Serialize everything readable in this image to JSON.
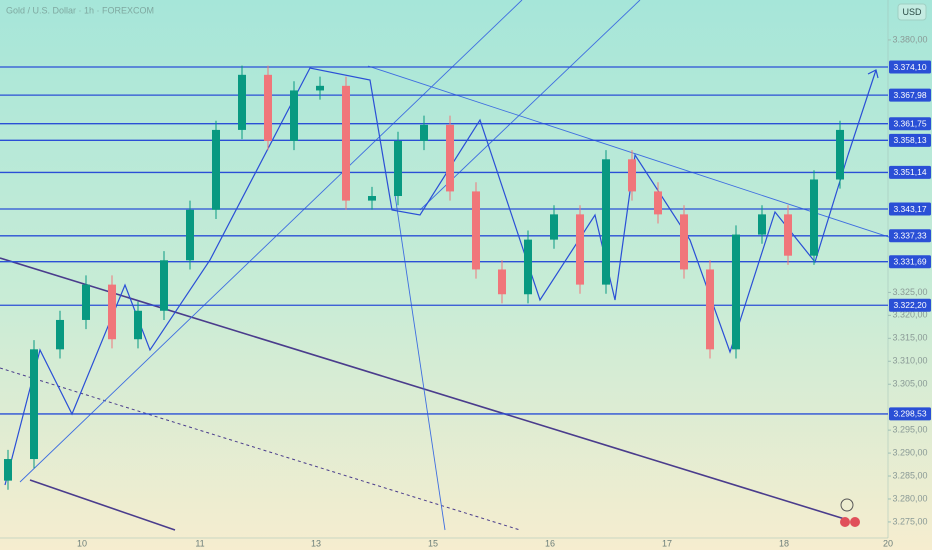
{
  "chart_data": {
    "type": "candlestick",
    "title": "Gold / U.S. Dollar · 1h · FOREXCOM",
    "currency": "USD",
    "up_color": "#089981",
    "down_color": "#f0767a",
    "level_color": "#2a4fd6",
    "ylim": [
      3271.5,
      3388.7
    ],
    "yticks": [
      {
        "value": 3380,
        "label": "3.380,00"
      },
      {
        "value": 3325,
        "label": "3.325,00"
      },
      {
        "value": 3320,
        "label": "3.320,00"
      },
      {
        "value": 3315,
        "label": "3.315,00"
      },
      {
        "value": 3310,
        "label": "3.310,00"
      },
      {
        "value": 3305,
        "label": "3.305,00"
      },
      {
        "value": 3295,
        "label": "3.295,00"
      },
      {
        "value": 3290,
        "label": "3.290,00"
      },
      {
        "value": 3285,
        "label": "3.285,00"
      },
      {
        "value": 3280,
        "label": "3.280,00"
      },
      {
        "value": 3275,
        "label": "3.275,00"
      }
    ],
    "x_labels": [
      "10",
      "11",
      "13",
      "15",
      "16",
      "17",
      "18",
      "20"
    ],
    "levels": [
      {
        "value": 3374.1,
        "label": "3.374,10"
      },
      {
        "value": 3367.98,
        "label": "3.367,98"
      },
      {
        "value": 3361.75,
        "label": "3.361,75"
      },
      {
        "value": 3358.13,
        "label": "3.358,13"
      },
      {
        "value": 3351.14,
        "label": "3.351,14"
      },
      {
        "value": 3343.17,
        "label": "3.343,17"
      },
      {
        "value": 3337.33,
        "label": "3.337,33"
      },
      {
        "value": 3331.69,
        "label": "3.331,69"
      },
      {
        "value": 3322.2,
        "label": "3.322,20"
      },
      {
        "value": 3298.53,
        "label": "3.298,53"
      }
    ],
    "open": [
      3284,
      3288.7,
      3312.6,
      3319,
      3326.7,
      3314.8,
      3321,
      3332,
      3343,
      3360.4,
      3372.4,
      3358,
      3369,
      3370,
      3345,
      3346,
      3358,
      3361.5,
      3347,
      3330,
      3324.6,
      3336.5,
      3342,
      3326.7,
      3354,
      3347,
      3342,
      3330,
      3312.6,
      3337.6,
      3342,
      3333,
      3349.6
    ],
    "high": [
      3290.7,
      3314.6,
      3321,
      3328.7,
      3328.7,
      3323,
      3334,
      3345,
      3362.4,
      3374.4,
      3374.4,
      3371,
      3372,
      3372,
      3348,
      3360,
      3363.5,
      3363.5,
      3349,
      3332,
      3338.5,
      3344,
      3344,
      3356,
      3356,
      3349,
      3344,
      3332,
      3339.6,
      3344,
      3344,
      3351.6,
      3362.4
    ],
    "low": [
      3282,
      3286.7,
      3310.6,
      3317,
      3312.8,
      3312.8,
      3319,
      3330,
      3341,
      3358.4,
      3356,
      3356,
      3367,
      3343,
      3343,
      3344,
      3356,
      3345,
      3328,
      3322.6,
      3322.6,
      3334.5,
      3324.7,
      3324.7,
      3345,
      3340,
      3328,
      3310.6,
      3310.6,
      3335.6,
      3331,
      3331,
      3347.6
    ],
    "close": [
      3288.7,
      3312.6,
      3319,
      3326.7,
      3314.8,
      3321,
      3332,
      3343,
      3360.4,
      3372.4,
      3358,
      3369,
      3370,
      3345,
      3346,
      3358,
      3361.5,
      3347,
      3330,
      3324.6,
      3336.5,
      3342,
      3326.7,
      3354,
      3347,
      3342,
      3330,
      3312.6,
      3337.6,
      3342,
      3333,
      3349.6,
      3360.4
    ]
  }
}
